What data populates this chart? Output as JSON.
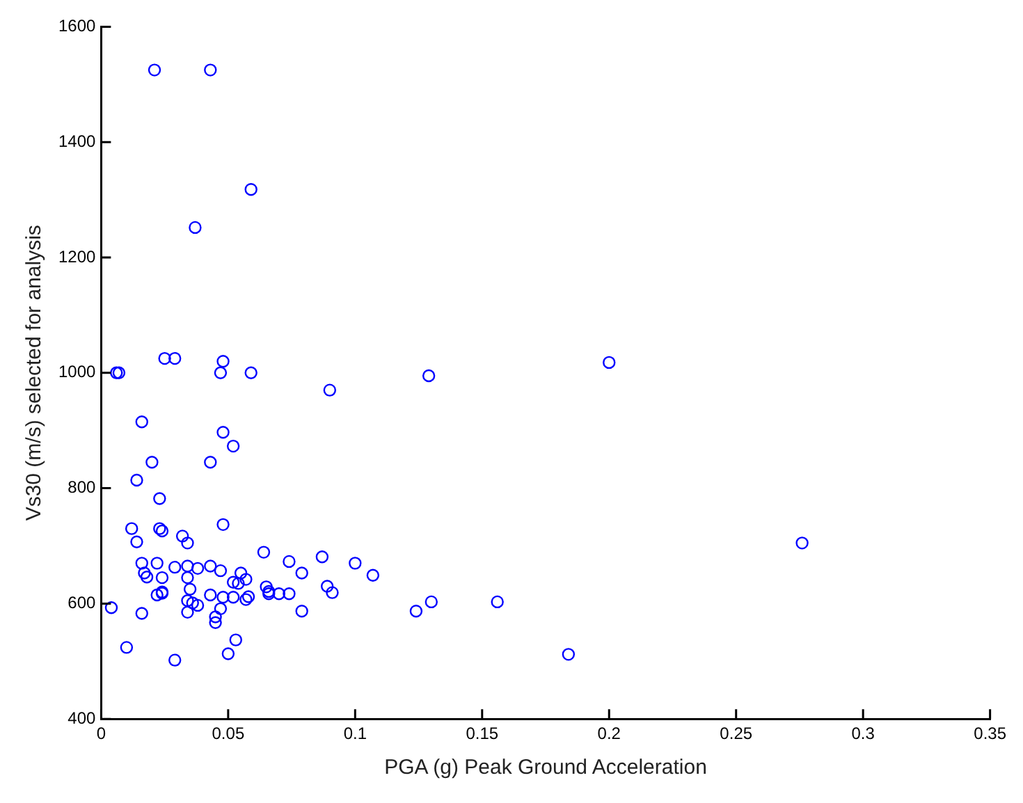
{
  "chart_data": {
    "type": "scatter",
    "xlabel": "PGA (g) Peak Ground Acceleration",
    "ylabel": "Vs30 (m/s) selected for analysis",
    "marker": "circle",
    "grid": false,
    "legend": false,
    "xlim": [
      0,
      0.35
    ],
    "xticks": [
      0,
      0.05,
      0.1,
      0.15,
      0.2,
      0.25,
      0.3,
      0.35
    ],
    "ylim": [
      400,
      1600
    ],
    "yticks": [
      400,
      600,
      800,
      1000,
      1200,
      1400,
      1600
    ],
    "series": [
      {
        "color": "#0000ff",
        "x": [
          0.006,
          0.007,
          0.021,
          0.043,
          0.059,
          0.037,
          0.025,
          0.029,
          0.048,
          0.047,
          0.059,
          0.09,
          0.129,
          0.2,
          0.276,
          0.016,
          0.048,
          0.052,
          0.02,
          0.043,
          0.014,
          0.023,
          0.048,
          0.012,
          0.023,
          0.024,
          0.032,
          0.034,
          0.014,
          0.064,
          0.087,
          0.074,
          0.1,
          0.107,
          0.016,
          0.022,
          0.029,
          0.034,
          0.038,
          0.043,
          0.047,
          0.017,
          0.018,
          0.024,
          0.034,
          0.055,
          0.057,
          0.052,
          0.054,
          0.079,
          0.065,
          0.066,
          0.066,
          0.07,
          0.074,
          0.089,
          0.091,
          0.035,
          0.024,
          0.024,
          0.022,
          0.043,
          0.048,
          0.052,
          0.057,
          0.058,
          0.034,
          0.036,
          0.038,
          0.034,
          0.047,
          0.004,
          0.016,
          0.079,
          0.045,
          0.045,
          0.053,
          0.05,
          0.01,
          0.029,
          0.124,
          0.13,
          0.156,
          0.184
        ],
        "values": [
          1000,
          1000,
          1525,
          1525,
          1318,
          1252,
          1025,
          1025,
          1020,
          1000,
          1000,
          970,
          995,
          1018,
          705,
          915,
          897,
          873,
          845,
          845,
          814,
          782,
          737,
          730,
          730,
          726,
          717,
          705,
          707,
          689,
          681,
          673,
          670,
          649,
          670,
          670,
          663,
          665,
          661,
          665,
          657,
          653,
          646,
          645,
          645,
          653,
          642,
          637,
          635,
          653,
          629,
          621,
          617,
          617,
          617,
          630,
          619,
          625,
          620,
          618,
          615,
          615,
          611,
          611,
          607,
          612,
          605,
          601,
          597,
          585,
          591,
          593,
          583,
          587,
          577,
          567,
          537,
          513,
          524,
          502,
          587,
          603,
          603,
          512
        ]
      }
    ]
  }
}
